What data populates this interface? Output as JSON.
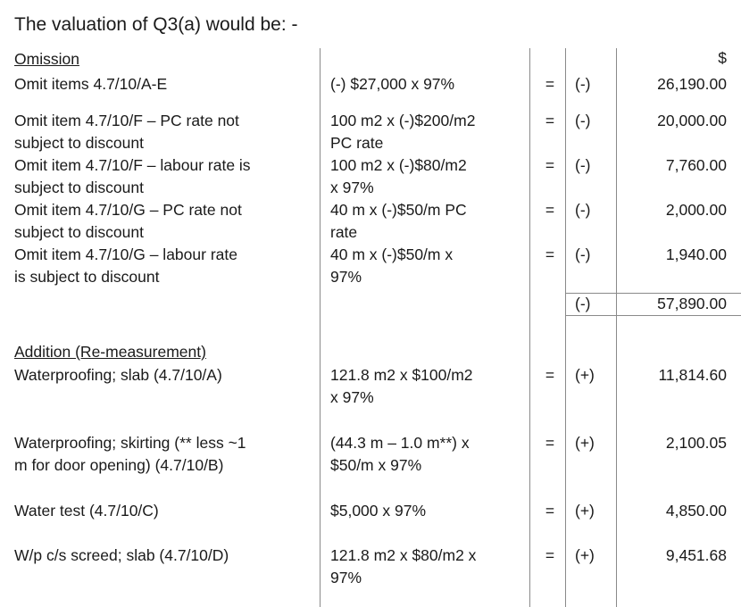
{
  "title": "The valuation of Q3(a) would be: -",
  "currency": "$",
  "omission": {
    "heading": "Omission",
    "rows": [
      {
        "desc": [
          "Omit items 4.7/10/A-E"
        ],
        "calc": [
          "(-) $27,000 x 97%"
        ],
        "eq": "=",
        "sign": "(-)",
        "amount": "26,190.00"
      },
      {
        "desc": [
          "Omit item 4.7/10/F – PC rate not",
          "subject to discount"
        ],
        "calc": [
          "100 m2 x (-)$200/m2",
          "PC rate"
        ],
        "eq": "=",
        "sign": "(-)",
        "amount": "20,000.00"
      },
      {
        "desc": [
          "Omit item 4.7/10/F – labour rate is",
          "subject to discount"
        ],
        "calc": [
          "100 m2 x (-)$80/m2",
          "x 97%"
        ],
        "eq": "=",
        "sign": "(-)",
        "amount": "7,760.00"
      },
      {
        "desc": [
          "Omit item 4.7/10/G – PC rate not",
          "subject to discount"
        ],
        "calc": [
          "40 m x (-)$50/m PC",
          "rate"
        ],
        "eq": "=",
        "sign": "(-)",
        "amount": "2,000.00"
      },
      {
        "desc": [
          "Omit item 4.7/10/G – labour rate",
          "is subject to discount"
        ],
        "calc": [
          "40 m x (-)$50/m  x",
          "97%"
        ],
        "eq": "=",
        "sign": "(-)",
        "amount": "1,940.00"
      }
    ],
    "total": {
      "sign": "(-)",
      "amount": "57,890.00"
    }
  },
  "addition": {
    "heading": "Addition (Re-measurement)",
    "rows": [
      {
        "desc": [
          "Waterproofing; slab (4.7/10/A)"
        ],
        "calc": [
          "121.8 m2 x $100/m2",
          "x 97%"
        ],
        "eq": "=",
        "sign": "(+)",
        "amount": "11,814.60"
      },
      {
        "desc": [
          "Waterproofing; skirting (** less ~1",
          "m for door opening) (4.7/10/B)"
        ],
        "calc": [
          "(44.3 m – 1.0 m**) x",
          "$50/m x 97%"
        ],
        "eq": "=",
        "sign": "(+)",
        "amount": "2,100.05"
      },
      {
        "desc": [
          "Water test (4.7/10/C)"
        ],
        "calc": [
          "$5,000 x 97%"
        ],
        "eq": "=",
        "sign": "(+)",
        "amount": "4,850.00"
      },
      {
        "desc": [
          "W/p c/s screed; slab (4.7/10/D)"
        ],
        "calc": [
          "121.8 m2 x $80/m2 x",
          "97%"
        ],
        "eq": "=",
        "sign": "(+)",
        "amount": "9,451.68"
      }
    ]
  }
}
